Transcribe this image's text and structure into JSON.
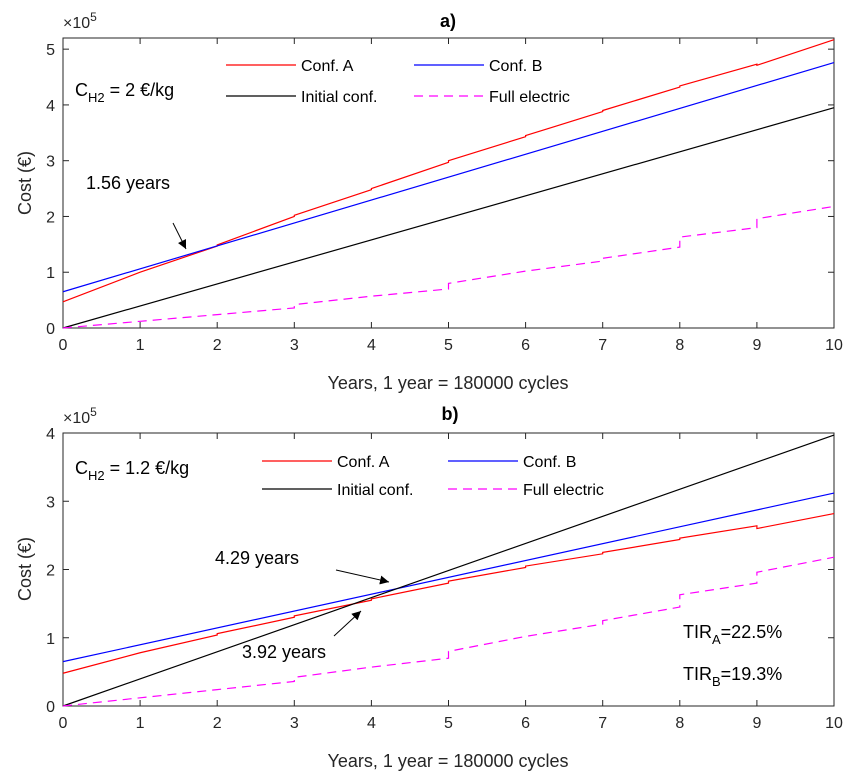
{
  "chart_data": [
    {
      "type": "line",
      "title": "a)",
      "xlabel": "Years, 1 year = 180000 cycles",
      "ylabel": "Cost (€)",
      "exponent_label": "×10",
      "exponent_power": "5",
      "xlim": [
        0,
        10
      ],
      "ylim": [
        0,
        5.2
      ],
      "y_scale": 100000,
      "xticks": [
        "0",
        "1",
        "2",
        "3",
        "4",
        "5",
        "6",
        "7",
        "8",
        "9",
        "10"
      ],
      "yticks": [
        "0",
        "1",
        "2",
        "3",
        "4",
        "5"
      ],
      "legend_placement": "top-center",
      "series": [
        {
          "name": "Conf. A",
          "color": "#ff0000",
          "dash": "solid",
          "points": [
            [
              0,
              0.47
            ],
            [
              1,
              1.0
            ],
            [
              2,
              1.47
            ],
            [
              2,
              1.49
            ],
            [
              3,
              2.0
            ],
            [
              3,
              2.02
            ],
            [
              4,
              2.48
            ],
            [
              4,
              2.5
            ],
            [
              5,
              2.97
            ],
            [
              5,
              3.0
            ],
            [
              6,
              3.43
            ],
            [
              6,
              3.45
            ],
            [
              7,
              3.88
            ],
            [
              7,
              3.9
            ],
            [
              8,
              4.32
            ],
            [
              8,
              4.34
            ],
            [
              9,
              4.73
            ],
            [
              9,
              4.71
            ],
            [
              10,
              5.17
            ]
          ]
        },
        {
          "name": "Conf. B",
          "color": "#0000ff",
          "dash": "solid",
          "points": [
            [
              0,
              0.65
            ],
            [
              10,
              4.76
            ]
          ]
        },
        {
          "name": "Initial conf.",
          "color": "#000000",
          "dash": "solid",
          "points": [
            [
              0,
              0.0
            ],
            [
              10,
              3.95
            ]
          ]
        },
        {
          "name": "Full electric",
          "color": "#ff00ff",
          "dash": "dashed",
          "points": [
            [
              0,
              0.0
            ],
            [
              1,
              0.12
            ],
            [
              2,
              0.24
            ],
            [
              3,
              0.36
            ],
            [
              3,
              0.42
            ],
            [
              4,
              0.57
            ],
            [
              5,
              0.7
            ],
            [
              5,
              0.8
            ],
            [
              6,
              1.02
            ],
            [
              7,
              1.2
            ],
            [
              7,
              1.25
            ],
            [
              8,
              1.45
            ],
            [
              8,
              1.63
            ],
            [
              9,
              1.8
            ],
            [
              9,
              1.96
            ],
            [
              10,
              2.18
            ]
          ]
        }
      ],
      "annotations": [
        {
          "text": "1.56 years",
          "x": 1.56,
          "y": 1.33,
          "text_x": 0.3,
          "text_y": 2.58
        }
      ],
      "cost_label": {
        "main": "C",
        "sub": "H2",
        "rest": " = 2 €/kg"
      }
    },
    {
      "type": "line",
      "title": "b)",
      "xlabel": "Years, 1 year = 180000 cycles",
      "ylabel": "Cost (€)",
      "exponent_label": "×10",
      "exponent_power": "5",
      "xlim": [
        0,
        10
      ],
      "ylim": [
        0,
        4
      ],
      "y_scale": 100000,
      "xticks": [
        "0",
        "1",
        "2",
        "3",
        "4",
        "5",
        "6",
        "7",
        "8",
        "9",
        "10"
      ],
      "yticks": [
        "0",
        "1",
        "2",
        "3",
        "4"
      ],
      "legend_placement": "top-center",
      "series": [
        {
          "name": "Conf. A",
          "color": "#ff0000",
          "dash": "solid",
          "points": [
            [
              0,
              0.48
            ],
            [
              1,
              0.78
            ],
            [
              2,
              1.04
            ],
            [
              2,
              1.06
            ],
            [
              3,
              1.3
            ],
            [
              3,
              1.32
            ],
            [
              4,
              1.55
            ],
            [
              4,
              1.57
            ],
            [
              5,
              1.8
            ],
            [
              5,
              1.83
            ],
            [
              6,
              2.03
            ],
            [
              6,
              2.05
            ],
            [
              7,
              2.23
            ],
            [
              7,
              2.25
            ],
            [
              8,
              2.44
            ],
            [
              8,
              2.46
            ],
            [
              9,
              2.64
            ],
            [
              9,
              2.6
            ],
            [
              10,
              2.82
            ]
          ]
        },
        {
          "name": "Conf. B",
          "color": "#0000ff",
          "dash": "solid",
          "points": [
            [
              0,
              0.65
            ],
            [
              10,
              3.12
            ]
          ]
        },
        {
          "name": "Initial conf.",
          "color": "#000000",
          "dash": "solid",
          "points": [
            [
              0,
              0.0
            ],
            [
              10,
              3.97
            ]
          ]
        },
        {
          "name": "Full electric",
          "color": "#ff00ff",
          "dash": "dashed",
          "points": [
            [
              0,
              0.0
            ],
            [
              1,
              0.12
            ],
            [
              2,
              0.24
            ],
            [
              3,
              0.36
            ],
            [
              3,
              0.42
            ],
            [
              4,
              0.57
            ],
            [
              5,
              0.7
            ],
            [
              5,
              0.8
            ],
            [
              6,
              1.02
            ],
            [
              7,
              1.2
            ],
            [
              7,
              1.25
            ],
            [
              8,
              1.45
            ],
            [
              8,
              1.63
            ],
            [
              9,
              1.8
            ],
            [
              9,
              1.96
            ],
            [
              10,
              2.18
            ]
          ]
        }
      ],
      "annotations": [
        {
          "text": "4.29 years",
          "x": 4.29,
          "y": 1.72,
          "text_x": 2.0,
          "text_y": 2.08
        },
        {
          "text": "3.92 years",
          "x": 3.92,
          "y": 1.56,
          "text_x": 2.3,
          "text_y": 0.76
        }
      ],
      "cost_label": {
        "main": "C",
        "sub": "H2",
        "rest": " = 1.2 €/kg"
      },
      "tir_labels": [
        {
          "main": "TIR",
          "sub": "A",
          "rest": "=22.5%"
        },
        {
          "main": "TIR",
          "sub": "B",
          "rest": "=19.3%"
        }
      ]
    }
  ]
}
